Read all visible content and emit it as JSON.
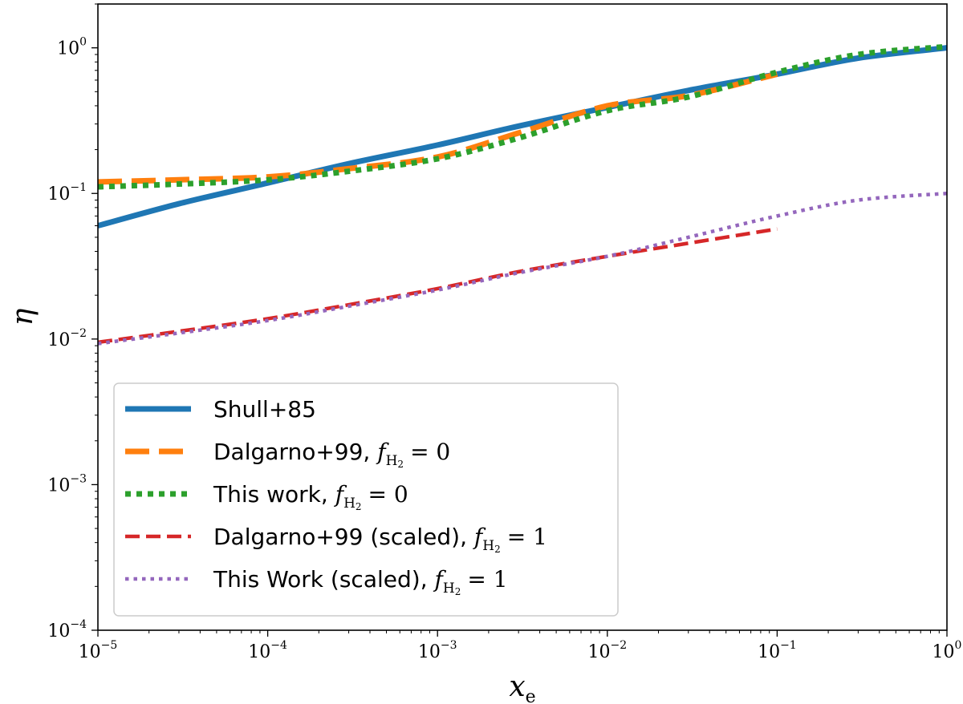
{
  "chart_data": {
    "type": "line",
    "title": "",
    "xlabel": "x",
    "xlabel_sub": "e",
    "ylabel": "η",
    "xscale": "log",
    "yscale": "log",
    "xlim": [
      1e-05,
      1
    ],
    "ylim": [
      0.0001,
      2
    ],
    "x_ticks": [
      {
        "base": "10",
        "exp": "−5",
        "value": 1e-05
      },
      {
        "base": "10",
        "exp": "−4",
        "value": 0.0001
      },
      {
        "base": "10",
        "exp": "−3",
        "value": 0.001
      },
      {
        "base": "10",
        "exp": "−2",
        "value": 0.01
      },
      {
        "base": "10",
        "exp": "−1",
        "value": 0.1
      },
      {
        "base": "10",
        "exp": "0",
        "value": 1
      }
    ],
    "y_ticks": [
      {
        "base": "10",
        "exp": "−4",
        "value": 0.0001
      },
      {
        "base": "10",
        "exp": "−3",
        "value": 0.001
      },
      {
        "base": "10",
        "exp": "−2",
        "value": 0.01
      },
      {
        "base": "10",
        "exp": "−1",
        "value": 0.1
      },
      {
        "base": "10",
        "exp": "0",
        "value": 1
      }
    ],
    "legend_position": "lower-left",
    "series": [
      {
        "name": "Shull+85",
        "legend_text": "Shull+85",
        "legend_math": false,
        "color": "#1f77b4",
        "style": "solid",
        "x": [
          1e-05,
          3e-05,
          0.0001,
          0.0003,
          0.001,
          0.003,
          0.01,
          0.03,
          0.1,
          0.3,
          1
        ],
        "y": [
          0.06,
          0.085,
          0.118,
          0.16,
          0.215,
          0.29,
          0.39,
          0.51,
          0.66,
          0.85,
          1.0
        ]
      },
      {
        "name": "Dalgarno+99, f_H2 = 0",
        "legend_text": "Dalgarno+99, ",
        "legend_math": true,
        "color": "#ff7f0e",
        "style": "long-dash",
        "x": [
          1e-05,
          3e-05,
          0.0001,
          0.0003,
          0.001,
          0.003,
          0.01,
          0.03,
          0.1
        ],
        "y": [
          0.12,
          0.124,
          0.13,
          0.148,
          0.178,
          0.26,
          0.4,
          0.47,
          0.66
        ]
      },
      {
        "name": "This work, f_H2 = 0",
        "legend_text": "This work, ",
        "legend_math": true,
        "color": "#2ca02c",
        "style": "dotted-thick",
        "x": [
          1e-05,
          3e-05,
          0.0001,
          0.0003,
          0.001,
          0.003,
          0.01,
          0.03,
          0.1,
          0.3,
          1
        ],
        "y": [
          0.111,
          0.116,
          0.124,
          0.142,
          0.173,
          0.24,
          0.37,
          0.46,
          0.68,
          0.9,
          1.02
        ]
      },
      {
        "name": "Dalgarno+99 (scaled), f_H2 = 1",
        "legend_text": "Dalgarno+99 (scaled), ",
        "legend_math": true,
        "color": "#d62728",
        "style": "dashed",
        "x": [
          1e-05,
          3e-05,
          0.0001,
          0.0003,
          0.001,
          0.003,
          0.01,
          0.03,
          0.1
        ],
        "y": [
          0.0095,
          0.0113,
          0.0138,
          0.0172,
          0.0222,
          0.029,
          0.037,
          0.0455,
          0.057
        ]
      },
      {
        "name": "This Work (scaled), f_H2 = 1",
        "legend_text": "This Work (scaled), ",
        "legend_math": true,
        "color": "#9467bd",
        "style": "dotted-thin",
        "x": [
          1e-05,
          3e-05,
          0.0001,
          0.0003,
          0.001,
          0.003,
          0.01,
          0.03,
          0.1,
          0.3,
          1
        ],
        "y": [
          0.0093,
          0.011,
          0.0134,
          0.0168,
          0.0217,
          0.0285,
          0.037,
          0.05,
          0.07,
          0.09,
          0.1
        ]
      }
    ],
    "legend_math_symbol": "f",
    "legend_math_sub": "H",
    "legend_math_subsub": "2",
    "legend_math_zero": "= 0",
    "legend_math_one": "= 1"
  }
}
